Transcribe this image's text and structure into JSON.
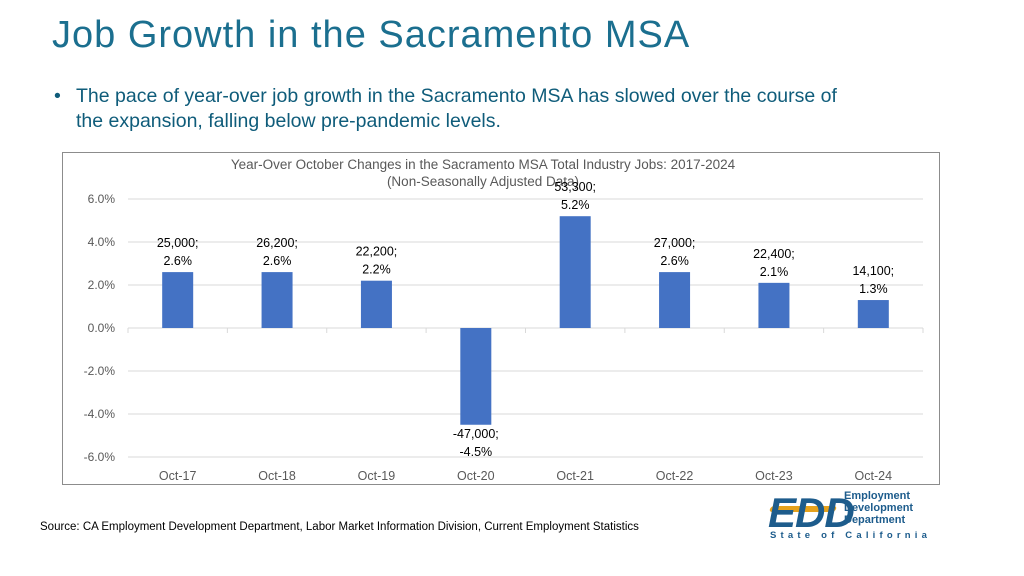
{
  "slide": {
    "title": "Job Growth in the Sacramento MSA",
    "bullet": "The pace of year-over job growth in the Sacramento MSA has slowed over the course of the expansion, falling below pre-pandemic levels.",
    "bullet_marker": "•",
    "source": "Source: CA Employment Development Department, Labor Market Information Division, Current Employment Statistics"
  },
  "logo": {
    "mark": "EDD",
    "words": [
      "Employment",
      "Development",
      "Department"
    ],
    "state": "State of California",
    "colors": {
      "blue": "#1d5c8c",
      "gold": "#e6a21c"
    }
  },
  "chart_data": {
    "type": "bar",
    "title": "Year-Over October Changes in the Sacramento MSA Total Industry Jobs: 2017-2024",
    "subtitle": "(Non-Seasonally Adjusted Data)",
    "categories": [
      "Oct-17",
      "Oct-18",
      "Oct-19",
      "Oct-20",
      "Oct-21",
      "Oct-22",
      "Oct-23",
      "Oct-24"
    ],
    "values": [
      2.6,
      2.6,
      2.2,
      -4.5,
      5.2,
      2.6,
      2.1,
      1.3
    ],
    "jobs_labels": [
      "25,000;",
      "26,200;",
      "22,200;",
      "-47,000;",
      "53,300;",
      "27,000;",
      "22,400;",
      "14,100;"
    ],
    "pct_labels": [
      "2.6%",
      "2.6%",
      "2.2%",
      "-4.5%",
      "5.2%",
      "2.6%",
      "2.1%",
      "1.3%"
    ],
    "yticks": [
      6,
      4,
      2,
      0,
      -2,
      -4,
      -6
    ],
    "ytick_labels": [
      "6.0%",
      "4.0%",
      "2.0%",
      "0.0%",
      "-2.0%",
      "-4.0%",
      "-6.0%"
    ],
    "ylim": [
      -6,
      6
    ],
    "grid": true,
    "bar_color": "#4472c4"
  }
}
